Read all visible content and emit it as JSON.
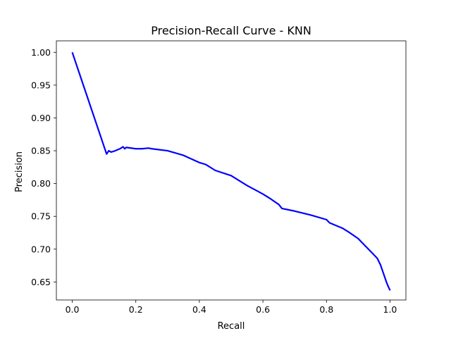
{
  "chart_data": {
    "type": "line",
    "title": "Precision-Recall Curve - KNN",
    "xlabel": "Recall",
    "ylabel": "Precision",
    "xlim": [
      -0.05,
      1.05
    ],
    "ylim": [
      0.6225,
      1.0175
    ],
    "xticks": [
      "0.0",
      "0.2",
      "0.4",
      "0.6",
      "0.8",
      "1.0"
    ],
    "yticks": [
      "0.65",
      "0.70",
      "0.75",
      "0.80",
      "0.85",
      "0.90",
      "0.95",
      "1.00"
    ],
    "grid": false,
    "line_color": "#0000ff",
    "series": [
      {
        "name": "",
        "x": [
          0.0,
          0.108,
          0.115,
          0.122,
          0.13,
          0.15,
          0.16,
          0.165,
          0.17,
          0.2,
          0.22,
          0.24,
          0.25,
          0.3,
          0.35,
          0.4,
          0.42,
          0.45,
          0.5,
          0.55,
          0.6,
          0.62,
          0.65,
          0.66,
          0.7,
          0.75,
          0.8,
          0.81,
          0.85,
          0.87,
          0.9,
          0.92,
          0.94,
          0.96,
          0.97,
          0.98,
          0.99,
          1.0
        ],
        "y": [
          1.0,
          0.845,
          0.85,
          0.848,
          0.849,
          0.853,
          0.856,
          0.853,
          0.855,
          0.853,
          0.853,
          0.854,
          0.853,
          0.85,
          0.843,
          0.832,
          0.829,
          0.82,
          0.812,
          0.797,
          0.784,
          0.778,
          0.768,
          0.762,
          0.758,
          0.752,
          0.745,
          0.74,
          0.732,
          0.726,
          0.716,
          0.706,
          0.696,
          0.686,
          0.676,
          0.662,
          0.648,
          0.637
        ]
      }
    ]
  }
}
